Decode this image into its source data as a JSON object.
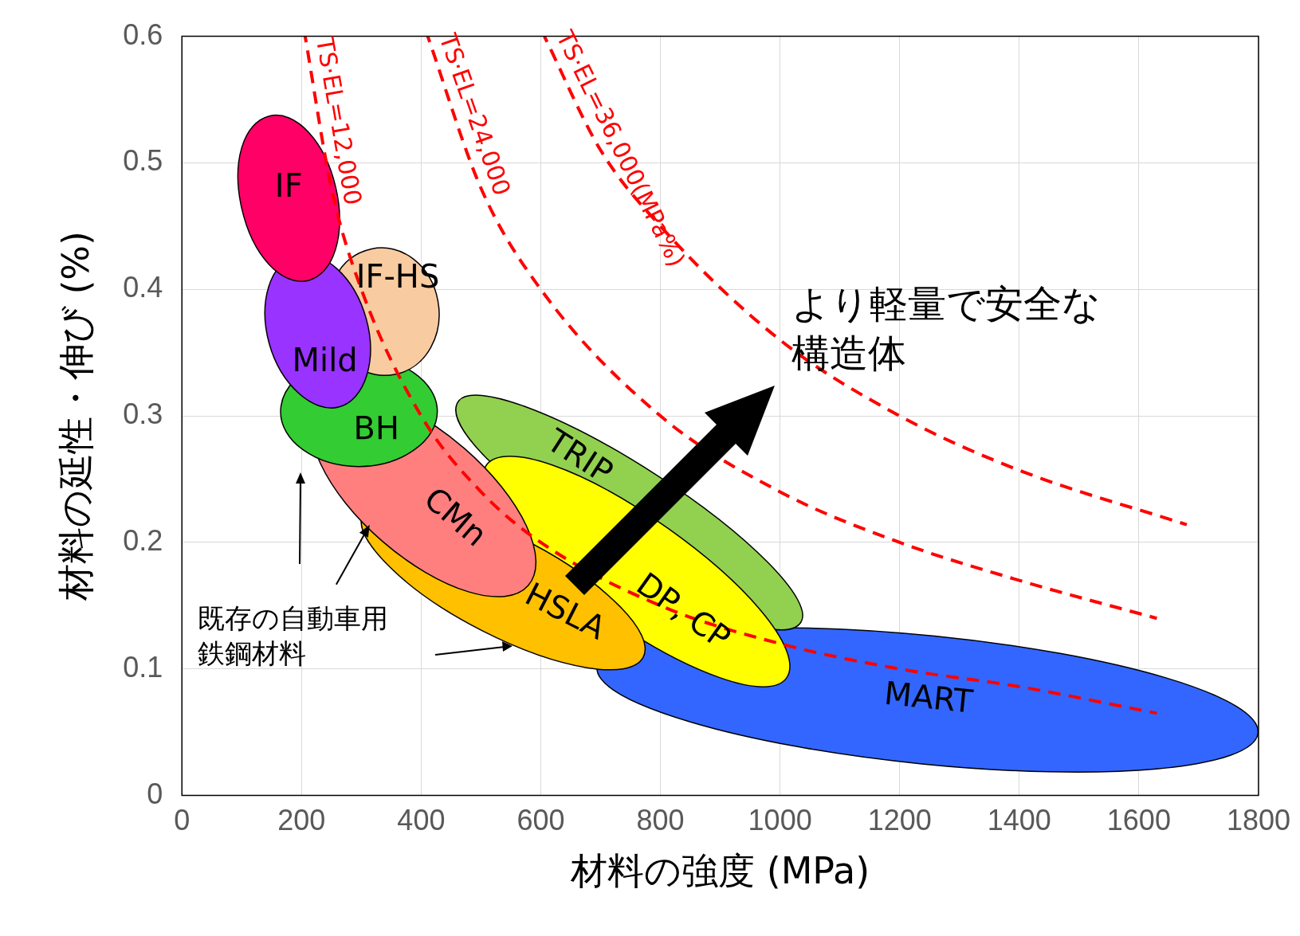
{
  "chart_data": {
    "type": "area",
    "xlabel": "材料の強度 (MPa)",
    "ylabel": "材料の延性・伸び (%)",
    "xlim": [
      0,
      1800
    ],
    "xticks": [
      0,
      200,
      400,
      600,
      800,
      1000,
      1200,
      1400,
      1600,
      1800
    ],
    "ylim": [
      0,
      0.6
    ],
    "yticks": [
      0,
      0.1,
      0.2,
      0.3,
      0.4,
      0.5,
      0.6
    ],
    "grid": true,
    "legend": false,
    "series": [
      {
        "name": "MART",
        "color": "#3366ff",
        "x": [
          1799,
          1645,
          1259,
          851,
          1237,
          1630
        ],
        "values": [
          0.049,
          0.093,
          0.126,
          0.058,
          0.025,
          0.021
        ]
      },
      {
        "name": "TRIP",
        "color": "#92d050",
        "x": [
          1035,
          980,
          791,
          576,
          463
        ],
        "values": [
          0.137,
          0.184,
          0.254,
          0.307,
          0.312
        ]
      },
      {
        "name": "DP, CP",
        "color": "#ffff00",
        "x": [
          1011,
          975,
          813,
          620,
          509,
          900
        ],
        "values": [
          0.093,
          0.142,
          0.211,
          0.261,
          0.261,
          0.093
        ]
      },
      {
        "name": "HSLA",
        "color": "#ffc000",
        "x": [
          771,
          731,
          351,
          503,
          677
        ],
        "values": [
          0.109,
          0.15,
          0.179,
          0.13,
          0.101
        ]
      },
      {
        "name": "CMn",
        "color": "#ff7f7f",
        "x": [
          579,
          576,
          473,
          232,
          335,
          479
        ],
        "values": [
          0.166,
          0.213,
          0.274,
          0.262,
          0.201,
          0.161
        ]
      },
      {
        "name": "BH",
        "color": "#33cc33",
        "x": [
          388,
          427,
          388,
          296,
          203,
          165
        ],
        "values": [
          0.334,
          0.304,
          0.273,
          0.26,
          0.273,
          0.304
        ]
      },
      {
        "name": "IF-HS",
        "color": "#f8cba0",
        "x": [
          317,
          387,
          428,
          416,
          358
        ],
        "values": [
          0.432,
          0.424,
          0.391,
          0.354,
          0.333
        ]
      },
      {
        "name": "Mild",
        "color": "#9933ff",
        "x": [
          260,
          308,
          309,
          262,
          195,
          146,
          145
        ],
        "values": [
          0.416,
          0.377,
          0.332,
          0.307,
          0.318,
          0.357,
          0.402
        ]
      },
      {
        "name": "IF",
        "color": "#ff0066",
        "x": [
          146,
          212,
          257,
          257,
          211,
          145,
          100,
          100
        ],
        "values": [
          0.537,
          0.524,
          0.481,
          0.432,
          0.407,
          0.42,
          0.464,
          0.512
        ]
      },
      {
        "type": "line",
        "name": "TS·EL=12,000",
        "color": "#ff0000",
        "line_style": "dashed",
        "x": [
          206,
          250,
          300,
          400,
          500,
          600,
          800,
          1000,
          1200,
          1400,
          1630
        ],
        "values": [
          0.6,
          0.48,
          0.4,
          0.3,
          0.24,
          0.2,
          0.15,
          0.12,
          0.1,
          0.086,
          0.065
        ]
      },
      {
        "type": "line",
        "name": "TS·EL=24,000",
        "color": "#ff0000",
        "line_style": "dashed",
        "x": [
          411,
          500,
          600,
          800,
          1000,
          1200,
          1400,
          1630
        ],
        "values": [
          0.6,
          0.48,
          0.4,
          0.3,
          0.24,
          0.2,
          0.17,
          0.14
        ]
      },
      {
        "type": "line",
        "name": "TS·EL=36,000(MPa%)",
        "color": "#ff0000",
        "line_style": "dashed",
        "x": [
          606,
          700,
          800,
          1000,
          1200,
          1400,
          1680
        ],
        "values": [
          0.6,
          0.51,
          0.45,
          0.36,
          0.3,
          0.257,
          0.214
        ]
      }
    ],
    "annotations": [
      "より軽量で安全な構造体",
      {
        "text": "既存の自動車用鉄鋼材料",
        "x": 314,
        "y": 0.214
      }
    ]
  }
}
